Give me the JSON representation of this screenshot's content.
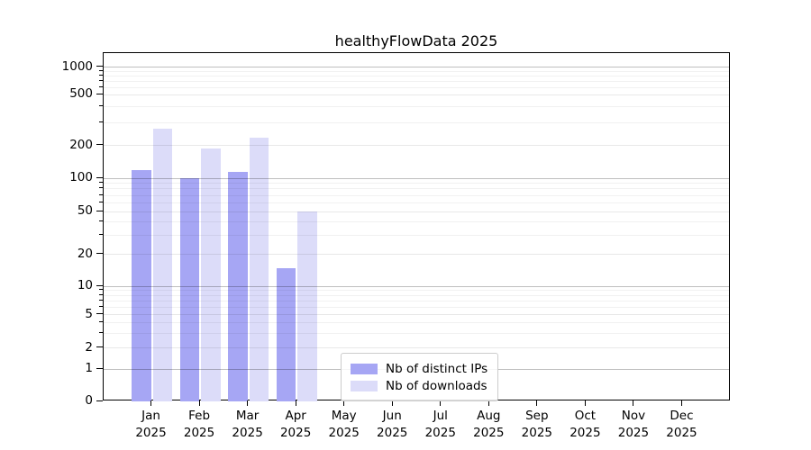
{
  "title": "healthyFlowData 2025",
  "colors": {
    "distinct_ips": "#a6a6f4",
    "downloads": "#dcdcf9",
    "background": "#ffffff",
    "spine": "#000000",
    "grid_major": "rgba(0,0,0,0.25)",
    "grid_labeled": "rgba(0,0,0,0.09)",
    "grid_minor": "rgba(0,0,0,0.055)",
    "text": "#000000",
    "legend_border": "#cccccc"
  },
  "legend": {
    "items": [
      {
        "label": "Nb of distinct IPs",
        "series": "distinct_ips"
      },
      {
        "label": "Nb of downloads",
        "series": "downloads"
      }
    ]
  },
  "y_axis": {
    "tick_labels": [
      "1000",
      "500",
      "200",
      "100",
      "50",
      "20",
      "10",
      "5",
      "2",
      "1",
      "0"
    ]
  },
  "x_axis": {
    "months": [
      "Jan",
      "Feb",
      "Mar",
      "Apr",
      "May",
      "Jun",
      "Jul",
      "Aug",
      "Sep",
      "Oct",
      "Nov",
      "Dec"
    ],
    "year": "2025"
  },
  "chart_data": {
    "type": "bar",
    "title": "healthyFlowData 2025",
    "categories": [
      "Jan 2025",
      "Feb 2025",
      "Mar 2025",
      "Apr 2025",
      "May 2025",
      "Jun 2025",
      "Jul 2025",
      "Aug 2025",
      "Sep 2025",
      "Oct 2025",
      "Nov 2025",
      "Dec 2025"
    ],
    "series": [
      {
        "name": "Nb of distinct IPs",
        "color": "#a6a6f4",
        "values": [
          120,
          100,
          115,
          15,
          0,
          0,
          0,
          0,
          0,
          0,
          0,
          0
        ]
      },
      {
        "name": "Nb of downloads",
        "color": "#dcdcf9",
        "values": [
          270,
          190,
          230,
          50,
          0,
          0,
          0,
          0,
          0,
          0,
          0,
          0
        ]
      }
    ],
    "yscale": "log-with-zero",
    "y_ticks": [
      0,
      1,
      2,
      5,
      10,
      20,
      50,
      100,
      200,
      500,
      1000
    ],
    "ylim": [
      0,
      1200
    ],
    "grid": true,
    "legend_position": "lower-center"
  }
}
